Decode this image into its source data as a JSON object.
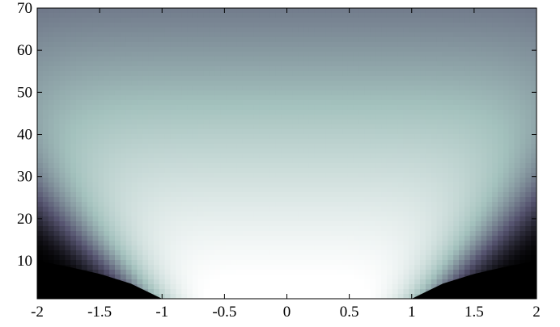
{
  "chart_data": {
    "type": "heatmap",
    "title": "",
    "xlabel": "",
    "ylabel": "",
    "xlim": [
      -2,
      2
    ],
    "ylim": [
      1,
      70
    ],
    "x_ticks": [
      -2,
      -1.5,
      -1,
      -0.5,
      0,
      0.5,
      1,
      1.5,
      2
    ],
    "x_tick_labels": [
      "-2",
      "-1.5",
      "-1",
      "-0.5",
      "0",
      "0.5",
      "1",
      "1.5",
      "2"
    ],
    "y_ticks": [
      10,
      20,
      30,
      40,
      50,
      60,
      70
    ],
    "y_tick_labels": [
      "10",
      "20",
      "30",
      "40",
      "50",
      "60",
      "70"
    ],
    "colormap": "bone",
    "colormap_stops": [
      "#000000",
      "#55536f",
      "#a3c1bd",
      "#ffffff"
    ],
    "grid": false,
    "legend": "none",
    "boundary_curve": {
      "description_key": "dark region below curve at |x| > 1",
      "points": [
        [
          1,
          1
        ],
        [
          1.25,
          4.6
        ],
        [
          1.5,
          6.9
        ],
        [
          1.75,
          8.6
        ],
        [
          2,
          10
        ]
      ]
    }
  }
}
